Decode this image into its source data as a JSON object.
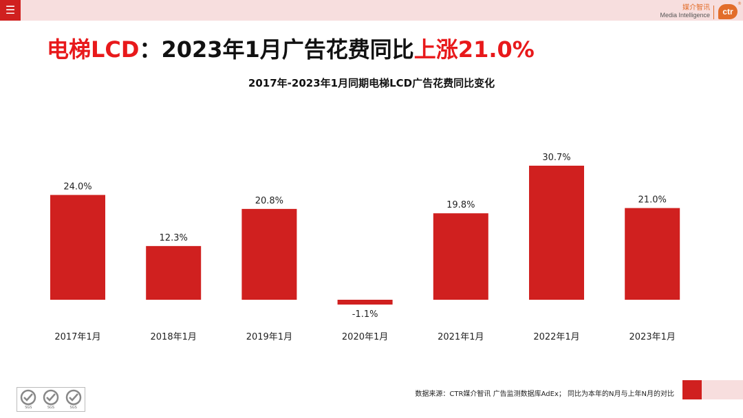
{
  "header": {
    "menu_icon": "menu-icon",
    "brand_cn": "媒介智讯",
    "brand_en": "Media Intelligence",
    "logo_text": "ctr",
    "logo_reg": "®"
  },
  "title": {
    "part1": "电梯LCD",
    "part2": "：2023年1月广告花费同比",
    "part3": "上涨21.0%"
  },
  "chart_data": {
    "type": "bar",
    "title": "2017年-2023年1月同期电梯LCD广告花费同比变化",
    "categories": [
      "2017年1月",
      "2018年1月",
      "2019年1月",
      "2020年1月",
      "2021年1月",
      "2022年1月",
      "2023年1月"
    ],
    "values": [
      24.0,
      12.3,
      20.8,
      -1.1,
      19.8,
      30.7,
      21.0
    ],
    "labels": [
      "24.0%",
      "12.3%",
      "20.8%",
      "-1.1%",
      "19.8%",
      "30.7%",
      "21.0%"
    ],
    "unit": "%",
    "xlabel": "",
    "ylabel": "",
    "ylim": [
      -1.1,
      30.7
    ],
    "bar_color": "#d0201f",
    "grid": false
  },
  "footer": {
    "source": "数据来源：CTR媒介智讯 广告监测数据库AdEx；  同比为本年的N月与上年N月的对比",
    "cert_marks": [
      "SGS",
      "SGS",
      "SGS"
    ]
  },
  "colors": {
    "accent": "#d0201f",
    "title_highlight": "#e8191b",
    "band": "#f7dede",
    "brand": "#e26d2a"
  }
}
